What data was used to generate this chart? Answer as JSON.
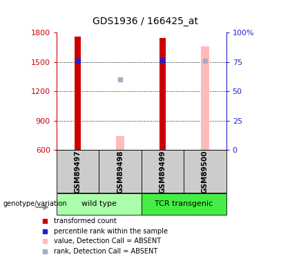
{
  "title": "GDS1936 / 166425_at",
  "samples": [
    "GSM89497",
    "GSM89498",
    "GSM89499",
    "GSM89500"
  ],
  "ylim": [
    600,
    1800
  ],
  "yticks": [
    600,
    900,
    1200,
    1500,
    1800
  ],
  "y2ticks": [
    0,
    25,
    50,
    75,
    100
  ],
  "y2labels": [
    "0",
    "25",
    "50",
    "75",
    "100%"
  ],
  "y2lim": [
    0,
    100
  ],
  "bar_bottom": 600,
  "transformed_counts": [
    1760,
    null,
    1740,
    null
  ],
  "transformed_count_color": "#cc0000",
  "transformed_bar_width": 0.15,
  "percentile_ranks": [
    1510,
    null,
    1515,
    null
  ],
  "percentile_rank_color": "#2222cc",
  "absent_values": [
    null,
    745,
    null,
    1660
  ],
  "absent_value_color": "#ffbbbb",
  "absent_value_bar_width": 0.2,
  "absent_ranks": [
    null,
    1320,
    null,
    1510
  ],
  "absent_rank_color": "#aaaacc",
  "absent_rank_size": 5,
  "groups": [
    {
      "label": "wild type",
      "samples": [
        0,
        1
      ],
      "color": "#aaffaa"
    },
    {
      "label": "TCR transgenic",
      "samples": [
        2,
        3
      ],
      "color": "#44ee44"
    }
  ],
  "group_label": "genotype/variation",
  "left_axis_color": "#cc0000",
  "right_axis_color": "#2222cc",
  "grid_color": "#000000",
  "sample_box_color": "#cccccc",
  "legend_items": [
    {
      "label": "transformed count",
      "color": "#cc0000"
    },
    {
      "label": "percentile rank within the sample",
      "color": "#2222cc"
    },
    {
      "label": "value, Detection Call = ABSENT",
      "color": "#ffbbbb"
    },
    {
      "label": "rank, Detection Call = ABSENT",
      "color": "#aaaacc"
    }
  ]
}
